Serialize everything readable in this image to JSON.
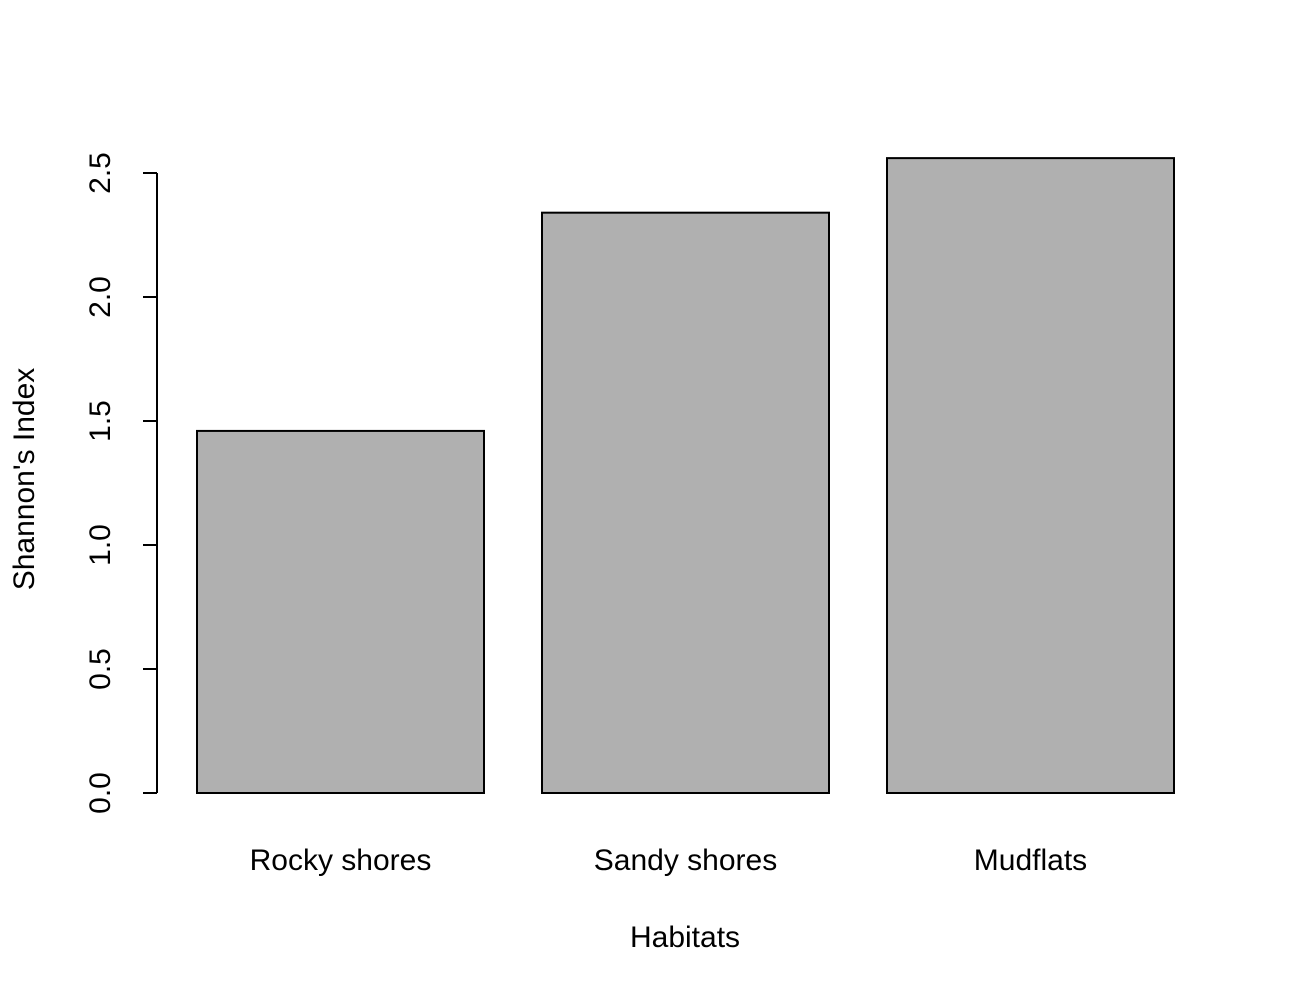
{
  "chart_data": {
    "type": "bar",
    "title": "",
    "xlabel": "Habitats",
    "ylabel": "Shannon's Index",
    "categories": [
      "Rocky shores",
      "Sandy shores",
      "Mudflats"
    ],
    "values": [
      1.46,
      2.34,
      2.56
    ],
    "ylim": [
      0,
      2.5
    ],
    "yticks": [
      0,
      0.5,
      1,
      1.5,
      2,
      2.5
    ],
    "ytick_labels": [
      "0.0",
      "0.5",
      "1.0",
      "1.5",
      "2.0",
      "2.5"
    ],
    "bar_color": "#b0b0b0",
    "bar_border_color": "#000000",
    "grid": false,
    "legend": false
  }
}
